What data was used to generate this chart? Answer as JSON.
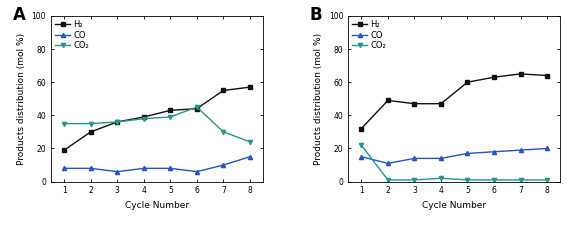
{
  "cycles": [
    1,
    2,
    3,
    4,
    5,
    6,
    7,
    8
  ],
  "panel_A": {
    "label": "A",
    "H2": [
      19,
      30,
      36,
      39,
      43,
      44,
      55,
      57
    ],
    "CO": [
      8,
      8,
      6,
      8,
      8,
      6,
      10,
      15
    ],
    "CO2": [
      35,
      35,
      36,
      38,
      39,
      45,
      30,
      24
    ]
  },
  "panel_B": {
    "label": "B",
    "H2": [
      32,
      49,
      47,
      47,
      60,
      63,
      65,
      64
    ],
    "CO": [
      15,
      11,
      14,
      14,
      17,
      18,
      19,
      20
    ],
    "CO2": [
      22,
      1,
      1,
      2,
      1,
      1,
      1,
      1
    ]
  },
  "colors": {
    "H2": "#111111",
    "CO": "#2255cc",
    "CO2": "#229988"
  },
  "ylabel": "Products distribution (mol %)",
  "xlabel": "Cycle Number",
  "ylim": [
    0,
    100
  ],
  "yticks": [
    0,
    20,
    40,
    60,
    80,
    100
  ],
  "legend_labels": [
    "H₂",
    "CO",
    "CO₂"
  ],
  "marker_H2": "s",
  "marker_CO": "^",
  "marker_CO2": "v",
  "marker_size": 3,
  "linewidth": 1.0,
  "label_fontsize": 12,
  "tick_fontsize": 5.5,
  "axis_label_fontsize": 6.5,
  "legend_fontsize": 6
}
